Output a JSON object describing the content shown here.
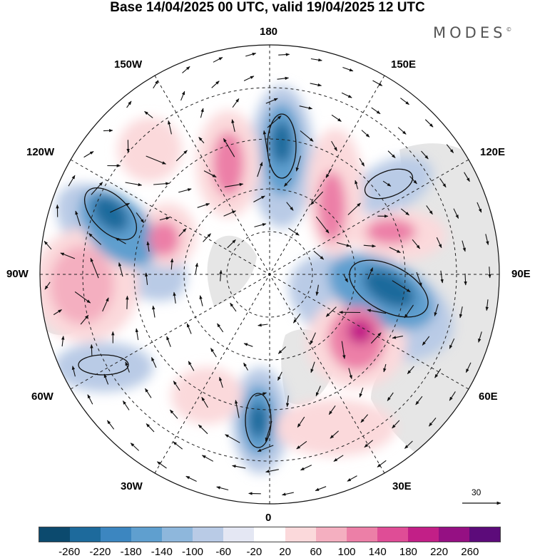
{
  "title": "Base 14/04/2025 00 UTC, valid 19/04/2025 12 UTC",
  "brand": "MODES",
  "brand_mark": "©",
  "longitude_labels": {
    "top": "180",
    "bottom": "0",
    "left": "90W",
    "right": "90E",
    "upper_left_1": "150W",
    "upper_left_2": "120W",
    "upper_right_1": "150E",
    "upper_right_2": "120E",
    "lower_left_1": "60W",
    "lower_left_2": "30W",
    "lower_right_1": "60E",
    "lower_right_2": "30E"
  },
  "wind_reference": {
    "label": "30"
  },
  "colorbar": {
    "colors": [
      "#0c4a6e",
      "#1d6a9c",
      "#3c86c0",
      "#5f9fcf",
      "#8eb7dc",
      "#b9cbe6",
      "#e4e7f3",
      "#ffffff",
      "#fbd9db",
      "#f4afc0",
      "#ec7fa7",
      "#df4d96",
      "#c21f87",
      "#951083",
      "#5c0b7a"
    ],
    "ticks": [
      "-260",
      "-220",
      "-180",
      "-140",
      "-100",
      "-60",
      "-20",
      "20",
      "60",
      "100",
      "140",
      "180",
      "220",
      "260"
    ]
  },
  "anomaly_colors": {
    "strong_negative": "#1d6a9c",
    "moderate_negative": "#5f9fcf",
    "weak_negative": "#b9cbe6",
    "very_weak_negative": "#e4e7f3",
    "weak_positive": "#fbd9db",
    "moderate_positive": "#f4afc0",
    "strong_positive": "#df4d96",
    "land": "#e6e6e6"
  }
}
